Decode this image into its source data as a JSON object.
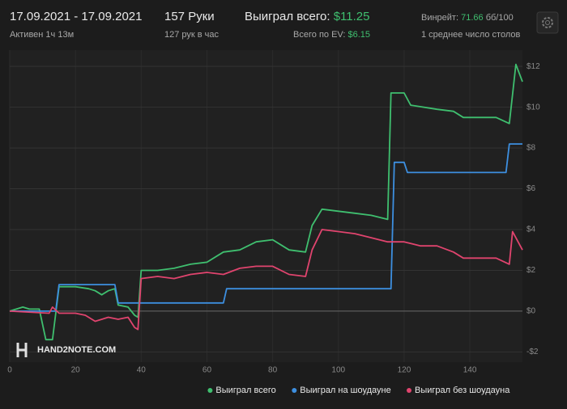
{
  "header": {
    "date_range": "17.09.2021 - 17.09.2021",
    "active_time": "Активен 1ч 13м",
    "hands": "157 Руки",
    "hands_per_hour": "127 рук в час",
    "won_total_label": "Выиграл всего:",
    "won_total_value": "$11.25",
    "ev_label": "Всего по EV:",
    "ev_value": "$6.15",
    "winrate_label": "Винрейт:",
    "winrate_value": "71.66",
    "winrate_unit": "бб/100",
    "tables": "1 среднее число столов"
  },
  "chart_data": {
    "type": "line",
    "watermark": "HAND2NOTE.COM",
    "xlim": [
      0,
      156
    ],
    "xticks": [
      0,
      20,
      40,
      60,
      80,
      100,
      120,
      140
    ],
    "ylim": [
      -2.5,
      12.8
    ],
    "yticks": [
      {
        "value": -2,
        "label": "-$2"
      },
      {
        "value": 0,
        "label": "$0"
      },
      {
        "value": 2,
        "label": "$2"
      },
      {
        "value": 4,
        "label": "$4"
      },
      {
        "value": 6,
        "label": "$6"
      },
      {
        "value": 8,
        "label": "$8"
      },
      {
        "value": 10,
        "label": "$10"
      },
      {
        "value": 12,
        "label": "$12"
      }
    ],
    "grid": true,
    "legend": "bottom-right",
    "series": [
      {
        "name": "Выиграл всего",
        "color": "#3fbf6f",
        "x": [
          0,
          2,
          4,
          6,
          9,
          11,
          13,
          15,
          20,
          24,
          26,
          28,
          30,
          32,
          33,
          36,
          38,
          39,
          40,
          45,
          50,
          55,
          60,
          65,
          70,
          75,
          80,
          85,
          90,
          92,
          95,
          100,
          105,
          110,
          115,
          116,
          120,
          122,
          130,
          135,
          138,
          142,
          148,
          152,
          154,
          156
        ],
        "values": [
          0,
          0.1,
          0.2,
          0.1,
          0.1,
          -1.4,
          -1.4,
          1.2,
          1.2,
          1.1,
          1.0,
          0.8,
          1.0,
          1.1,
          0.3,
          0.2,
          -0.2,
          -0.3,
          2.0,
          2.0,
          2.1,
          2.3,
          2.4,
          2.9,
          3.0,
          3.4,
          3.5,
          3.0,
          2.9,
          4.2,
          5.0,
          4.9,
          4.8,
          4.7,
          4.5,
          10.7,
          10.7,
          10.1,
          9.9,
          9.8,
          9.5,
          9.5,
          9.5,
          9.2,
          12.1,
          11.25
        ]
      },
      {
        "name": "Выиграл на шоудауне",
        "color": "#3d8fe0",
        "x": [
          0,
          14,
          15,
          32,
          33,
          65,
          66,
          116,
          117,
          120,
          121,
          151,
          152,
          156
        ],
        "values": [
          0,
          0,
          1.3,
          1.3,
          0.4,
          0.4,
          1.1,
          1.1,
          7.3,
          7.3,
          6.8,
          6.8,
          8.2,
          8.2
        ]
      },
      {
        "name": "Выиграл без шоудауна",
        "color": "#e0446e",
        "x": [
          0,
          12,
          13,
          15,
          20,
          23,
          26,
          30,
          33,
          36,
          38,
          39,
          40,
          45,
          50,
          55,
          60,
          65,
          70,
          75,
          80,
          85,
          90,
          92,
          95,
          100,
          105,
          110,
          115,
          120,
          125,
          130,
          135,
          138,
          142,
          148,
          152,
          153,
          156
        ],
        "values": [
          0,
          -0.1,
          0.2,
          -0.1,
          -0.1,
          -0.2,
          -0.5,
          -0.3,
          -0.4,
          -0.3,
          -0.8,
          -0.9,
          1.6,
          1.7,
          1.6,
          1.8,
          1.9,
          1.8,
          2.1,
          2.2,
          2.2,
          1.8,
          1.7,
          3.0,
          4.0,
          3.9,
          3.8,
          3.6,
          3.4,
          3.4,
          3.2,
          3.2,
          2.9,
          2.6,
          2.6,
          2.6,
          2.3,
          3.9,
          3.0
        ]
      }
    ]
  }
}
